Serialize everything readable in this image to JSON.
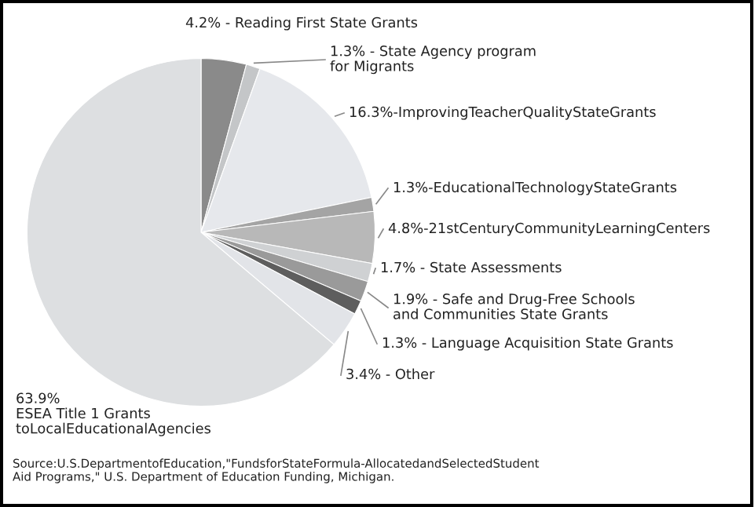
{
  "chart_data": {
    "type": "pie",
    "categories": [
      "4.2% - Reading First State Grants",
      "1.3% - State Agency program\nfor Migrants",
      "16.3%-ImprovingTeacherQualityStateGrants",
      "1.3%-EducationalTechnologyStateGrants",
      "4.8%-21stCenturyCommunityLearningCenters",
      "1.7% - State Assessments",
      "1.9% - Safe and Drug-Free Schools\nand Communities State Grants",
      "1.3% - Language Acquisition State Grants",
      "3.4% - Other",
      "63.9%\nESEA Title 1 Grants\ntoLocalEducationalAgencies"
    ],
    "values": [
      4.2,
      1.3,
      16.3,
      1.3,
      4.8,
      1.7,
      1.9,
      1.3,
      3.4,
      63.9
    ],
    "colors": [
      "#8a8a8a",
      "#c4c6c8",
      "#e6e8ec",
      "#a4a4a4",
      "#b8b8b8",
      "#cfd1d3",
      "#9a9a9a",
      "#5e5e5e",
      "#e2e4e8",
      "#dddfe1"
    ],
    "annotations": [
      "Source:U.S.DepartmentofEducation,\"FundsforStateFormula-AllocatedandSelectedStudent\nAid Programs,\" U.S. Department of Education Funding, Michigan."
    ],
    "legend": false
  }
}
